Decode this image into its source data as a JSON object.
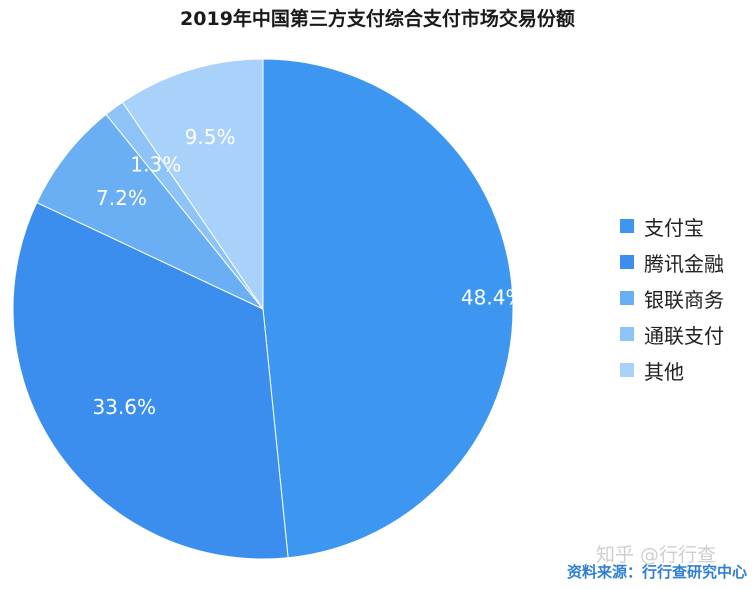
{
  "chart_data": {
    "type": "pie",
    "title": "2019年中国第三方支付综合支付市场交易份额",
    "slices": [
      {
        "name": "支付宝",
        "value": 48.4,
        "label": "48.4%",
        "color": "#3d97f0"
      },
      {
        "name": "腾讯金融",
        "value": 33.6,
        "label": "33.6%",
        "color": "#3b8eee"
      },
      {
        "name": "银联商务",
        "value": 7.2,
        "label": "7.2%",
        "color": "#6aaef4"
      },
      {
        "name": "通联支付",
        "value": 1.3,
        "label": "1.3%",
        "color": "#8ec3f7"
      },
      {
        "name": "其他",
        "value": 9.5,
        "label": "9.5%",
        "color": "#a9d2fa"
      }
    ],
    "legend_position": "right"
  },
  "watermark": "知乎 @行行查",
  "source": "资料来源：行行查研究中心"
}
